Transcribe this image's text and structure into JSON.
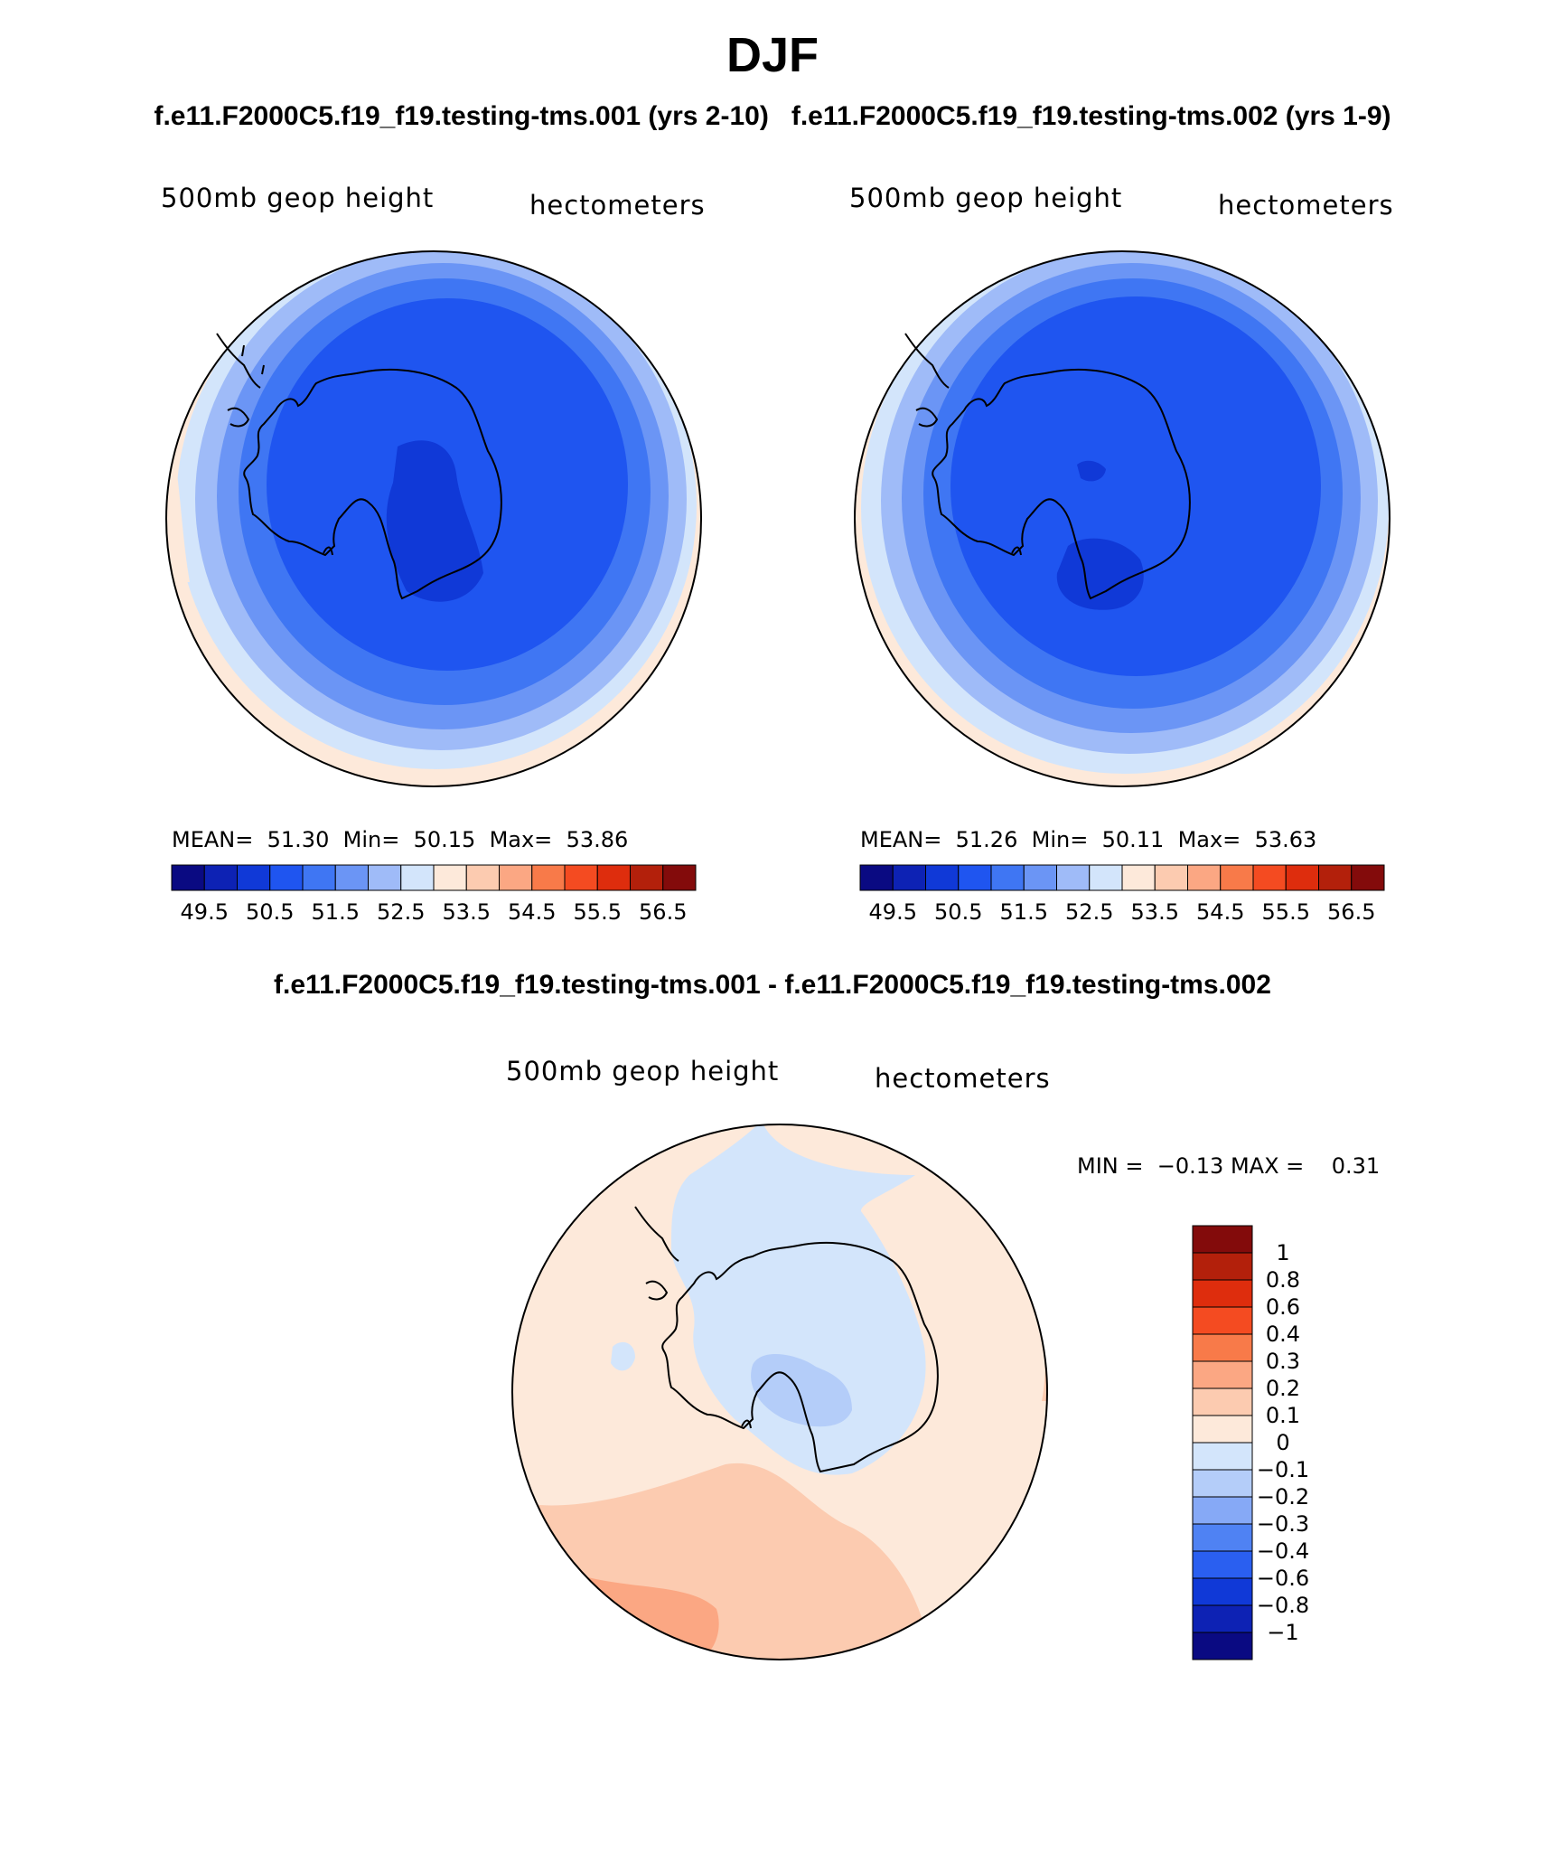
{
  "title": "DJF",
  "subtitle_left": "f.e11.F2000C5.f19_f19.testing-tms.001 (yrs 2-10)",
  "subtitle_right": "f.e11.F2000C5.f19_f19.testing-tms.002 (yrs 1-9)",
  "diff_title": "f.e11.F2000C5.f19_f19.testing-tms.001 - f.e11.F2000C5.f19_f19.testing-tms.002",
  "panels": [
    {
      "variable": "500mb geop height",
      "units": "hectometers",
      "stats": {
        "mean_label": "MEAN=",
        "mean": "51.30",
        "min_label": "Min=",
        "min": "50.15",
        "max_label": "Max=",
        "max": "53.86"
      }
    },
    {
      "variable": "500mb geop height",
      "units": "hectometers",
      "stats": {
        "mean_label": "MEAN=",
        "mean": "51.26",
        "min_label": "Min=",
        "min": "50.11",
        "max_label": "Max=",
        "max": "53.63"
      }
    }
  ],
  "diff_panel": {
    "variable": "500mb geop height",
    "units": "hectometers",
    "min_label": "MIN =",
    "min": "−0.13",
    "max_label": "MAX =",
    "max": "0.31"
  },
  "horizontal_colorbar": {
    "colors": [
      "#0a0a82",
      "#0d22b4",
      "#1039d7",
      "#1f55f0",
      "#3f76f3",
      "#6b95f5",
      "#9fbbf8",
      "#d3e5fb",
      "#fde9da",
      "#fccbb0",
      "#fba783",
      "#f87a49",
      "#f44b21",
      "#de2d0d",
      "#b3200b",
      "#830b0b"
    ],
    "labels": [
      "49.5",
      "50.5",
      "51.5",
      "52.5",
      "53.5",
      "54.5",
      "55.5",
      "56.5"
    ]
  },
  "vertical_colorbar": {
    "colors_top_to_bottom": [
      "#830b0b",
      "#b3200b",
      "#de2d0d",
      "#f44b21",
      "#f87a49",
      "#fba783",
      "#fccbb0",
      "#fde9da",
      "#d3e5fb",
      "#b4cdf9",
      "#86a9f6",
      "#4f82f3",
      "#2a5ff0",
      "#1039d7",
      "#0d22b4",
      "#0a0a82"
    ],
    "labels": [
      "1",
      "0.8",
      "0.6",
      "0.4",
      "0.3",
      "0.2",
      "0.1",
      "0",
      "−0.1",
      "−0.2",
      "−0.3",
      "−0.4",
      "−0.6",
      "−0.8",
      "−1"
    ]
  }
}
